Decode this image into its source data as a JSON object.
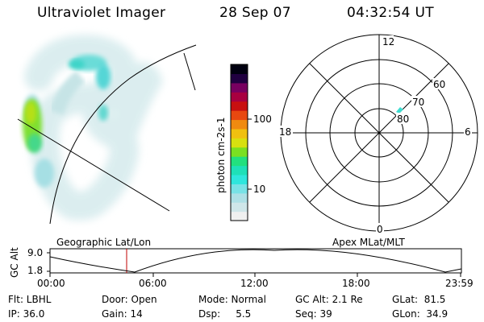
{
  "header": {
    "instrument": "Ultraviolet Imager",
    "date": "28 Sep 07",
    "time": "04:32:54 UT"
  },
  "colorbar": {
    "unit": "photon cm-2s-1",
    "ticks": [
      "100",
      "10"
    ],
    "colors": [
      "#f0f0f0",
      "#cfe6e9",
      "#aee0e6",
      "#78e2e6",
      "#2ee6dd",
      "#1ee0b8",
      "#22e07e",
      "#7ae022",
      "#d8e010",
      "#f0c010",
      "#f08a10",
      "#e84810",
      "#c81010",
      "#a80040",
      "#780060",
      "#200040",
      "#000010"
    ]
  },
  "polar": {
    "labels": [
      "12",
      "60",
      "70",
      "80",
      "18",
      "6",
      "0"
    ]
  },
  "timeline": {
    "left_title": "Geographic Lat/Lon",
    "right_title": "Apex MLat/MLT",
    "y_label": "GC Alt",
    "y_top": "9.0",
    "y_bottom": "1.8",
    "x_ticks": [
      "00:00",
      "06:00",
      "12:00",
      "18:00",
      "23:59"
    ]
  },
  "info": {
    "flt": "Flt: LBHL",
    "ip": "IP: 36.0",
    "door": "Door: Open",
    "gain": "Gain: 14",
    "mode": "Mode: Normal",
    "dsp": "Dsp:     5.5",
    "gcalt": "GC Alt: 2.1 Re",
    "seq": "Seq: 39",
    "glat": "GLat:  81.5",
    "glon": "GLon:  34.9"
  }
}
